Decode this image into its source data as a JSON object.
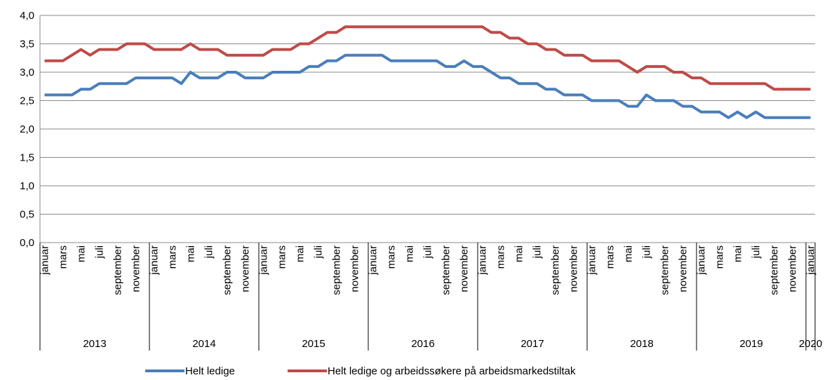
{
  "chart_data": {
    "type": "line",
    "categories": [
      "januar",
      null,
      "mars",
      null,
      "mai",
      null,
      "juli",
      null,
      "september",
      null,
      "november",
      null,
      "januar",
      null,
      "mars",
      null,
      "mai",
      null,
      "juli",
      null,
      "september",
      null,
      "november",
      null,
      "januar",
      null,
      "mars",
      null,
      "mai",
      null,
      "juli",
      null,
      "september",
      null,
      "november",
      null,
      "januar",
      null,
      "mars",
      null,
      "mai",
      null,
      "juli",
      null,
      "september",
      null,
      "november",
      null,
      "januar",
      null,
      "mars",
      null,
      "mai",
      null,
      "juli",
      null,
      "september",
      null,
      "november",
      null,
      "januar",
      null,
      "mars",
      null,
      "mai",
      null,
      "juli",
      null,
      "september",
      null,
      "november",
      null,
      "januar",
      null,
      "mars",
      null,
      "mai",
      null,
      "juli",
      null,
      "september",
      null,
      "november",
      null,
      "januar"
    ],
    "x_groups": [
      "2013",
      "2014",
      "2015",
      "2016",
      "2017",
      "2018",
      "2019",
      "2020"
    ],
    "series": [
      {
        "name": "Helt ledige",
        "color": "#4a7ebb",
        "values": [
          2.6,
          2.6,
          2.6,
          2.6,
          2.7,
          2.7,
          2.8,
          2.8,
          2.8,
          2.8,
          2.9,
          2.9,
          2.9,
          2.9,
          2.9,
          2.8,
          3.0,
          2.9,
          2.9,
          2.9,
          3.0,
          3.0,
          2.9,
          2.9,
          2.9,
          3.0,
          3.0,
          3.0,
          3.0,
          3.1,
          3.1,
          3.2,
          3.2,
          3.3,
          3.3,
          3.3,
          3.3,
          3.3,
          3.2,
          3.2,
          3.2,
          3.2,
          3.2,
          3.2,
          3.1,
          3.1,
          3.2,
          3.1,
          3.1,
          3.0,
          2.9,
          2.9,
          2.8,
          2.8,
          2.8,
          2.7,
          2.7,
          2.6,
          2.6,
          2.6,
          2.5,
          2.5,
          2.5,
          2.5,
          2.4,
          2.4,
          2.6,
          2.5,
          2.5,
          2.5,
          2.4,
          2.4,
          2.3,
          2.3,
          2.3,
          2.2,
          2.3,
          2.2,
          2.3,
          2.2,
          2.2,
          2.2,
          2.2,
          2.2,
          2.2
        ]
      },
      {
        "name": "Helt ledige og arbeidssøkere på arbeidsmarkedstiltak",
        "color": "#be4b48",
        "values": [
          3.2,
          3.2,
          3.2,
          3.3,
          3.4,
          3.3,
          3.4,
          3.4,
          3.4,
          3.5,
          3.5,
          3.5,
          3.4,
          3.4,
          3.4,
          3.4,
          3.5,
          3.4,
          3.4,
          3.4,
          3.3,
          3.3,
          3.3,
          3.3,
          3.3,
          3.4,
          3.4,
          3.4,
          3.5,
          3.5,
          3.6,
          3.7,
          3.7,
          3.8,
          3.8,
          3.8,
          3.8,
          3.8,
          3.8,
          3.8,
          3.8,
          3.8,
          3.8,
          3.8,
          3.8,
          3.8,
          3.8,
          3.8,
          3.8,
          3.7,
          3.7,
          3.6,
          3.6,
          3.5,
          3.5,
          3.4,
          3.4,
          3.3,
          3.3,
          3.3,
          3.2,
          3.2,
          3.2,
          3.2,
          3.1,
          3.0,
          3.1,
          3.1,
          3.1,
          3.0,
          3.0,
          2.9,
          2.9,
          2.8,
          2.8,
          2.8,
          2.8,
          2.8,
          2.8,
          2.8,
          2.7,
          2.7,
          2.7,
          2.7,
          2.7
        ]
      }
    ],
    "ylim": [
      0,
      4
    ],
    "yticks": [
      {
        "value": 0,
        "label": "0,0"
      },
      {
        "value": 0.5,
        "label": "0,5"
      },
      {
        "value": 1,
        "label": "1,0"
      },
      {
        "value": 1.5,
        "label": "1,5"
      },
      {
        "value": 2,
        "label": "2,0"
      },
      {
        "value": 2.5,
        "label": "2,5"
      },
      {
        "value": 3,
        "label": "3,0"
      },
      {
        "value": 3.5,
        "label": "3,5"
      },
      {
        "value": 4,
        "label": "4,0"
      }
    ],
    "grid": true,
    "legend": "bottom"
  }
}
